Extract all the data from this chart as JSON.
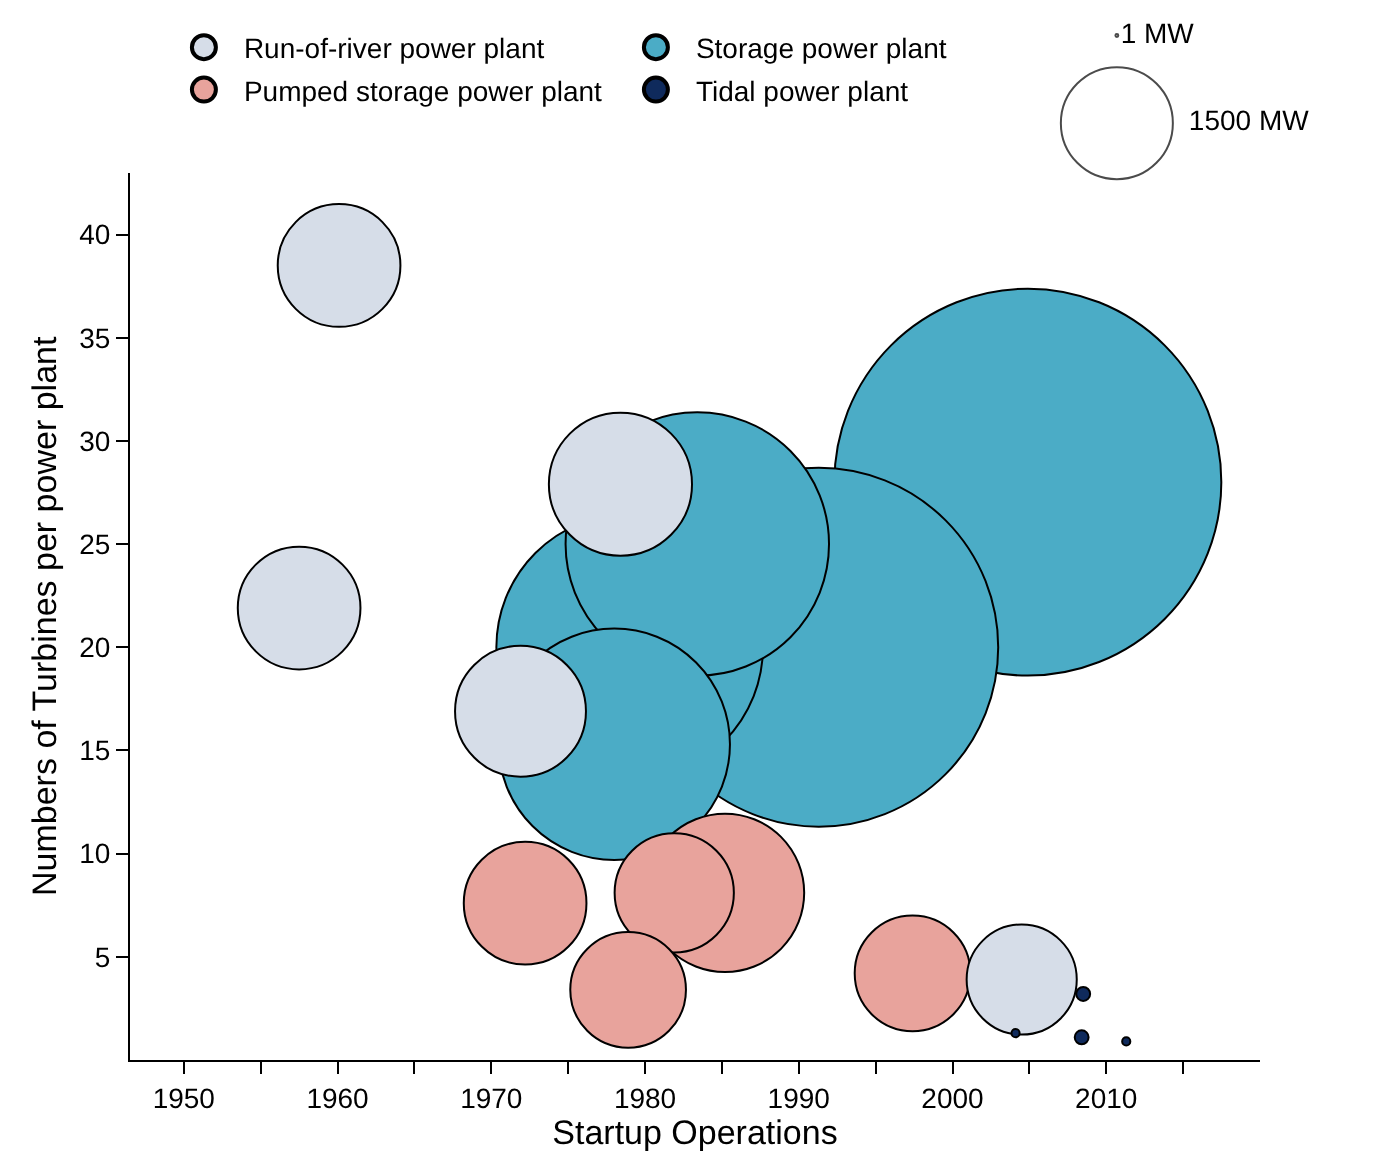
{
  "chart_data": {
    "type": "bubble",
    "xlabel": "Startup Operations",
    "ylabel": "Numbers of Turbines per power plant",
    "xlim": [
      1946.5,
      2020
    ],
    "ylim": [
      0,
      43
    ],
    "xticks": [
      1950,
      {
        "value": 1955,
        "label": null
      },
      1960,
      {
        "value": 1965,
        "label": null
      },
      1970,
      {
        "value": 1975,
        "label": null
      },
      1980,
      {
        "value": 1985,
        "label": null
      },
      1990,
      {
        "value": 1995,
        "label": null
      },
      2000,
      {
        "value": 2005,
        "label": null
      },
      2010,
      {
        "value": 2015,
        "label": null
      }
    ],
    "yticks": [
      5,
      10,
      15,
      20,
      25,
      30,
      35,
      40
    ],
    "legend": "top",
    "size_legend": [
      {
        "value": 1,
        "label": "1 MW"
      },
      {
        "value": 1500,
        "label": "1500 MW"
      }
    ],
    "series": [
      {
        "name": "Run-of-river power plant",
        "color": "#d6dde8",
        "x": [
          1960.1,
          1957.5,
          1978.4,
          1971.9,
          2004.5
        ],
        "values": [
          38.5,
          21.9,
          27.9,
          16.9,
          3.9
        ],
        "sizes": [
          1800,
          1800,
          2450,
          2050,
          1450
        ]
      },
      {
        "name": "Storage power plant",
        "color": "#4bacc6",
        "x": [
          2004.9,
          1991.3,
          1979,
          1983.4,
          1978
        ],
        "values": [
          28,
          20,
          20,
          25,
          15.3
        ],
        "sizes": [
          17900,
          15400,
          8500,
          8300,
          6400
        ]
      },
      {
        "name": "Pumped storage power plant",
        "color": "#e8a39c",
        "x": [
          1972.2,
          1985.2,
          1981.9,
          1978.9,
          1997.4
        ],
        "values": [
          7.6,
          8.1,
          8.1,
          3.4,
          4.2
        ],
        "sizes": [
          1800,
          3000,
          1700,
          1600,
          1600
        ]
      },
      {
        "name": "Tidal power plant",
        "color": "#0f2a5c",
        "x": [
          2008.5,
          2008.4,
          2011.3,
          2004.1
        ],
        "values": [
          3.2,
          1.1,
          0.9,
          1.3
        ],
        "sizes": [
          23,
          23,
          8,
          8
        ]
      }
    ]
  }
}
